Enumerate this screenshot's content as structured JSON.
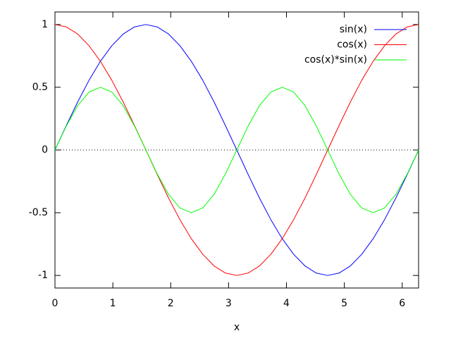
{
  "chart_data": {
    "type": "line",
    "x_label": "x",
    "x": [
      0,
      0.196,
      0.393,
      0.589,
      0.785,
      0.982,
      1.178,
      1.374,
      1.571,
      1.767,
      1.963,
      2.16,
      2.356,
      2.553,
      2.749,
      2.945,
      3.142,
      3.338,
      3.534,
      3.731,
      3.927,
      4.123,
      4.32,
      4.516,
      4.712,
      4.909,
      5.105,
      5.301,
      5.498,
      5.694,
      5.89,
      6.087,
      6.283
    ],
    "series": [
      {
        "name": "sin(x)",
        "color": "#0000ff",
        "values": [
          0,
          0.195,
          0.383,
          0.556,
          0.707,
          0.831,
          0.924,
          0.981,
          1,
          0.981,
          0.924,
          0.831,
          0.707,
          0.556,
          0.383,
          0.195,
          0,
          -0.195,
          -0.383,
          -0.556,
          -0.707,
          -0.831,
          -0.924,
          -0.981,
          -1,
          -0.981,
          -0.924,
          -0.831,
          -0.707,
          -0.556,
          -0.383,
          -0.195,
          0
        ]
      },
      {
        "name": "cos(x)",
        "color": "#ff0000",
        "values": [
          1,
          0.981,
          0.924,
          0.831,
          0.707,
          0.556,
          0.383,
          0.195,
          0,
          -0.195,
          -0.383,
          -0.556,
          -0.707,
          -0.831,
          -0.924,
          -0.981,
          -1,
          -0.981,
          -0.924,
          -0.831,
          -0.707,
          -0.556,
          -0.383,
          -0.195,
          0,
          0.195,
          0.383,
          0.556,
          0.707,
          0.831,
          0.924,
          0.981,
          1
        ]
      },
      {
        "name": "cos(x)*sin(x)",
        "color": "#00ff00",
        "values": [
          0,
          0.191,
          0.354,
          0.462,
          0.5,
          0.462,
          0.354,
          0.191,
          0,
          -0.191,
          -0.354,
          -0.462,
          -0.5,
          -0.462,
          -0.354,
          -0.191,
          0,
          0.191,
          0.354,
          0.462,
          0.5,
          0.462,
          0.354,
          0.191,
          0,
          -0.191,
          -0.354,
          -0.462,
          -0.5,
          -0.462,
          -0.354,
          -0.191,
          0
        ]
      }
    ],
    "xlim": [
      0,
      6.283
    ],
    "xticks": [
      0,
      1,
      2,
      3,
      4,
      5,
      6
    ],
    "ylim": [
      -1.1,
      1.1
    ],
    "yticks": [
      -1,
      -0.5,
      0,
      0.5,
      1
    ],
    "zero_axis": true,
    "legend": "top-right"
  }
}
